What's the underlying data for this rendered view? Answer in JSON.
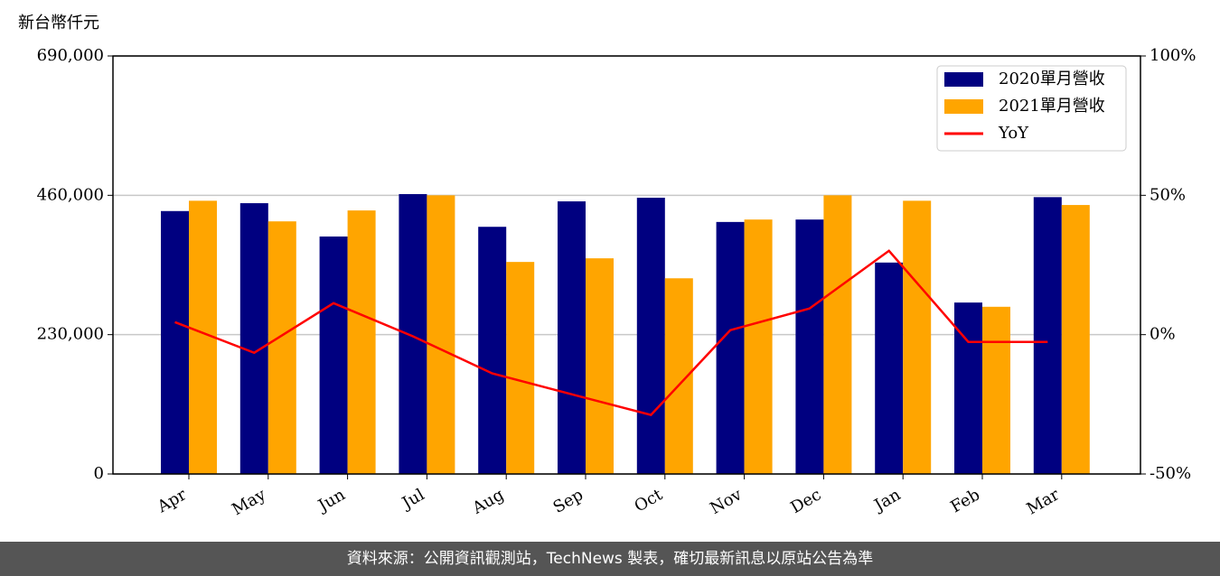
{
  "chart_data": {
    "type": "bar_line",
    "y_unit_label": "新台幣仟元",
    "categories": [
      "Apr",
      "May",
      "Jun",
      "Jul",
      "Aug",
      "Sep",
      "Oct",
      "Nov",
      "Dec",
      "Jan",
      "Feb",
      "Mar"
    ],
    "series": [
      {
        "name": "2020單月營收",
        "color": "#000080",
        "values": [
          434000,
          447000,
          392000,
          462000,
          408000,
          450000,
          456000,
          416000,
          420000,
          349000,
          283000,
          457000
        ]
      },
      {
        "name": "2021單月營收",
        "color": "#ffa500",
        "values": [
          451000,
          417000,
          435000,
          460000,
          350000,
          356000,
          323000,
          420000,
          460000,
          451000,
          276000,
          444000
        ]
      },
      {
        "name": "YoY",
        "color": "#ff0000",
        "axis": "y2",
        "values": [
          4.5,
          -6.5,
          11.3,
          -0.6,
          -13.9,
          -21.4,
          -28.8,
          1.6,
          9.4,
          30.1,
          -2.6,
          -2.6
        ]
      }
    ],
    "ylim": [
      0,
      690000
    ],
    "yticks": [
      0,
      {
        "value": 230000,
        "label": "230,000"
      },
      {
        "value": 460000,
        "label": "460,000"
      },
      {
        "value": 690000,
        "label": "690,000"
      }
    ],
    "y2lim": [
      -50,
      100
    ],
    "y2ticks": [
      {
        "value": -50,
        "label": "-50%"
      },
      {
        "value": 0,
        "label": "0%"
      },
      {
        "value": 50,
        "label": "50%"
      },
      {
        "value": 100,
        "label": "100%"
      }
    ],
    "grid": true,
    "legend": "upper right",
    "footer": "資料來源：公開資訊觀測站，TechNews 製表，確切最新訊息以原站公告為準"
  }
}
